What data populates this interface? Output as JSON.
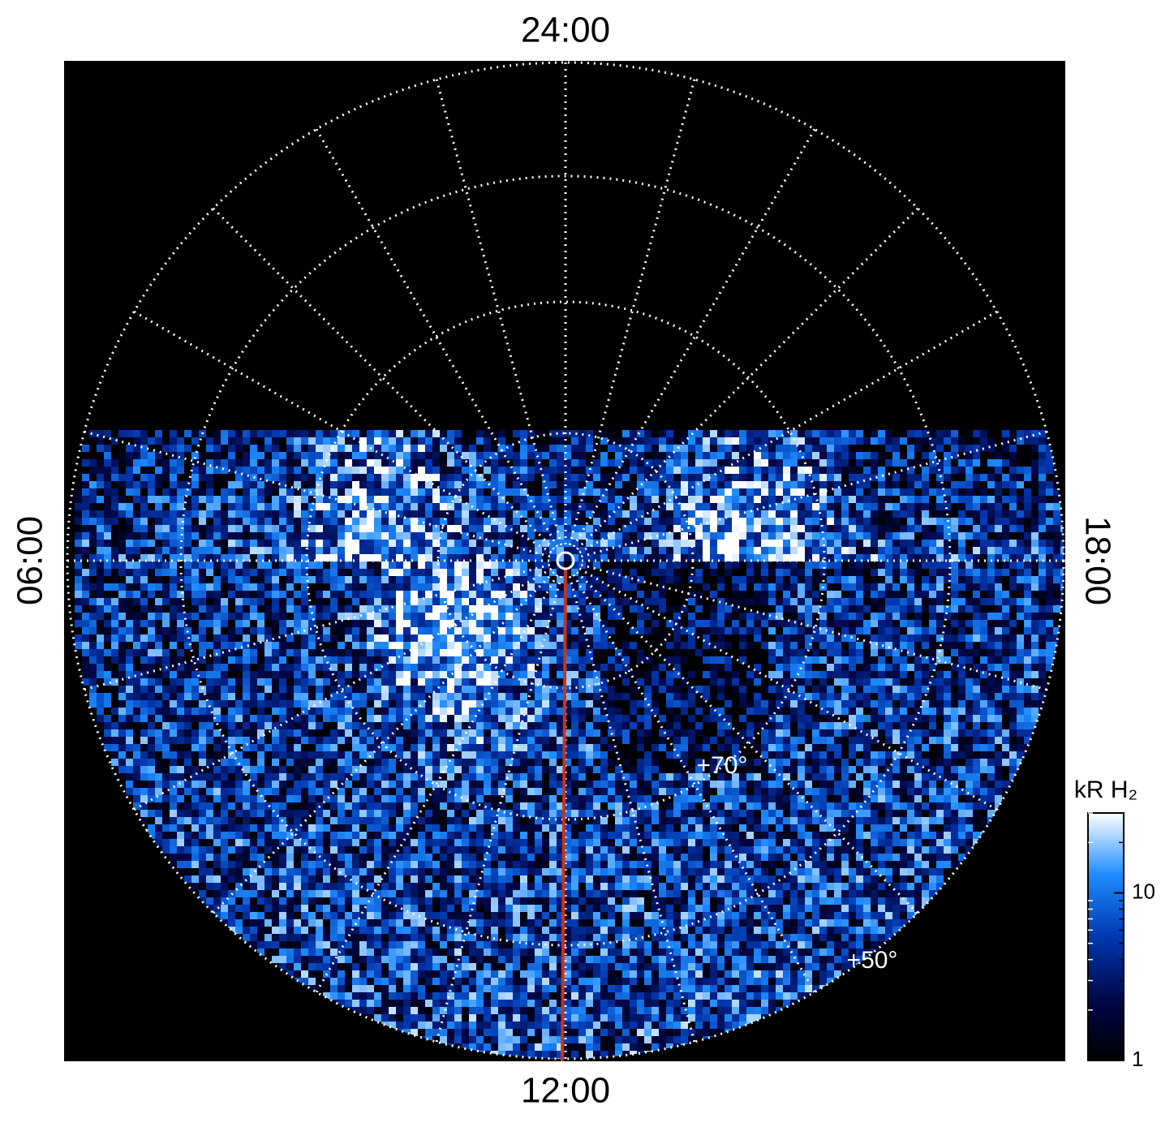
{
  "chart_data": {
    "type": "polar-map",
    "labels": {
      "top": "24:00",
      "left": "06:00",
      "bottom": "12:00",
      "right": "18:00"
    },
    "latitude_labels": [
      "+70°",
      "+50°"
    ],
    "colorbar": {
      "label": "kR H₂",
      "scale": "log",
      "ylim": [
        1,
        30
      ],
      "yticks": [
        1,
        10
      ],
      "colors": [
        "#000000",
        "#00084a",
        "#0038b0",
        "#1e8cff",
        "#ffffff"
      ]
    },
    "line_color": "#c8341a"
  }
}
